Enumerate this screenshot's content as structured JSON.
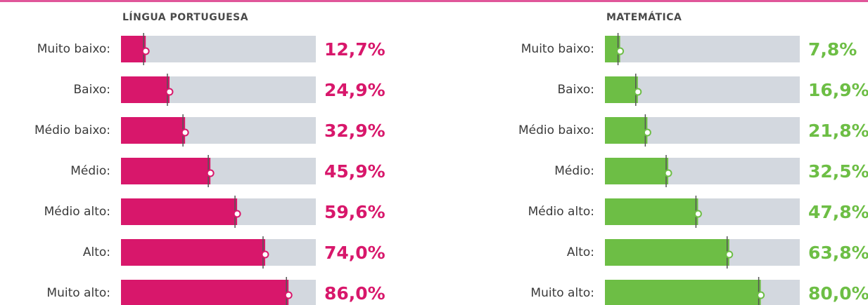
{
  "chart_data": [
    {
      "type": "bar",
      "orientation": "horizontal",
      "title": "LÍNGUA PORTUGUESA",
      "categories": [
        "Muito baixo:",
        "Baixo:",
        "Médio baixo:",
        "Médio:",
        "Médio alto:",
        "Alto:",
        "Muito alto:"
      ],
      "values": [
        12.7,
        24.9,
        32.9,
        45.9,
        59.6,
        74.0,
        86.0
      ],
      "value_labels": [
        "12,7%",
        "24,9%",
        "32,9%",
        "45,9%",
        "59,6%",
        "74,0%",
        "86,0%"
      ],
      "color": "#d8176b",
      "xlim": [
        0,
        100
      ]
    },
    {
      "type": "bar",
      "orientation": "horizontal",
      "title": "MATEMÁTICA",
      "categories": [
        "Muito baixo:",
        "Baixo:",
        "Médio baixo:",
        "Médio:",
        "Médio alto:",
        "Alto:",
        "Muito alto:"
      ],
      "values": [
        7.8,
        16.9,
        21.8,
        32.5,
        47.8,
        63.8,
        80.0
      ],
      "value_labels": [
        "7,8%",
        "16,9%",
        "21,8%",
        "32,5%",
        "47,8%",
        "63,8%",
        "80,0%"
      ],
      "color": "#6dbe45",
      "xlim": [
        0,
        100
      ]
    }
  ]
}
